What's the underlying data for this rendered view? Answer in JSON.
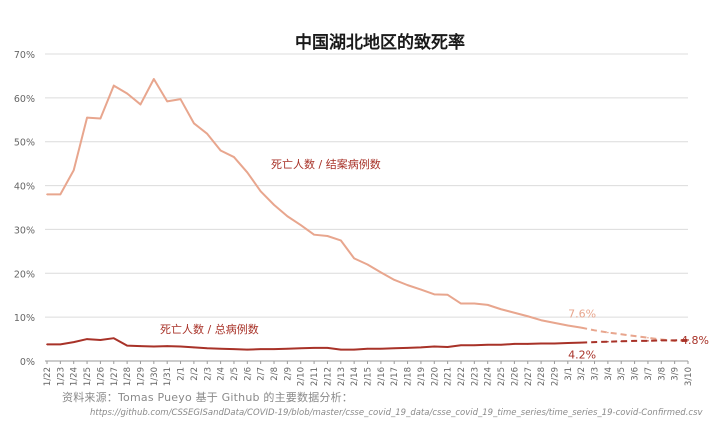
{
  "chart_data": {
    "type": "line",
    "title": "中国湖北地区的致死率",
    "xlabel": "",
    "ylabel": "",
    "ylim": [
      0,
      70
    ],
    "yticks": [
      "0%",
      "10%",
      "20%",
      "30%",
      "40%",
      "50%",
      "60%",
      "70%"
    ],
    "grid": true,
    "x": [
      "1/22",
      "1/23",
      "1/24",
      "1/25",
      "1/26",
      "1/27",
      "1/28",
      "1/29",
      "1/30",
      "1/31",
      "2/1",
      "2/2",
      "2/3",
      "2/4",
      "2/5",
      "2/6",
      "2/7",
      "2/8",
      "2/9",
      "2/10",
      "2/11",
      "2/12",
      "2/13",
      "2/14",
      "2/15",
      "2/16",
      "2/17",
      "2/18",
      "2/19",
      "2/20",
      "2/21",
      "2/22",
      "2/23",
      "2/24",
      "2/25",
      "2/26",
      "2/27",
      "2/28",
      "2/29",
      "3/1",
      "3/2",
      "3/3",
      "3/4",
      "3/5",
      "3/6",
      "3/7",
      "3/8",
      "3/9",
      "3/10"
    ],
    "series": [
      {
        "name": "死亡人数 / 结案病例数",
        "color": "#e8a68e",
        "values": [
          38,
          38,
          43.5,
          55.5,
          55.3,
          62.8,
          61,
          58.5,
          64.3,
          59.2,
          59.7,
          54.2,
          51.8,
          48,
          46.5,
          43,
          38.7,
          35.6,
          33,
          31,
          28.8,
          28.5,
          27.5,
          23.4,
          22,
          20.2,
          18.5,
          17.3,
          16.3,
          15.2,
          15.1,
          13.1,
          13.1,
          12.8,
          11.8,
          11,
          10.2,
          9.3,
          8.7,
          8.1,
          7.6,
          7.0,
          6.5,
          6.1,
          5.7,
          5.3,
          4.9,
          4.6,
          4.8
        ],
        "projection_from": "3/2",
        "end_label": "7.6%"
      },
      {
        "name": "死亡人数 / 总病例数",
        "color": "#a83228",
        "values": [
          3.8,
          3.8,
          4.3,
          5.0,
          4.8,
          5.2,
          3.5,
          3.4,
          3.3,
          3.4,
          3.3,
          3.1,
          2.9,
          2.8,
          2.7,
          2.6,
          2.7,
          2.7,
          2.8,
          2.9,
          3.0,
          3.0,
          2.6,
          2.6,
          2.8,
          2.8,
          2.9,
          3.0,
          3.1,
          3.3,
          3.2,
          3.6,
          3.6,
          3.7,
          3.7,
          3.9,
          3.9,
          4.0,
          4.0,
          4.1,
          4.2,
          4.3,
          4.4,
          4.5,
          4.6,
          4.6,
          4.7,
          4.7,
          4.8
        ],
        "projection_from": "3/2",
        "end_label": "4.2%"
      }
    ],
    "converge_label": "4.8%",
    "source_text": "资料来源：Tomas Pueyo 基于 Github 的主要数据分析：",
    "source_url": "https://github.com/CSSEGISandData/COVID-19/blob/master/csse_covid_19_data/csse_covid_19_time_series/time_series_19-covid-Confirmed.csv"
  }
}
